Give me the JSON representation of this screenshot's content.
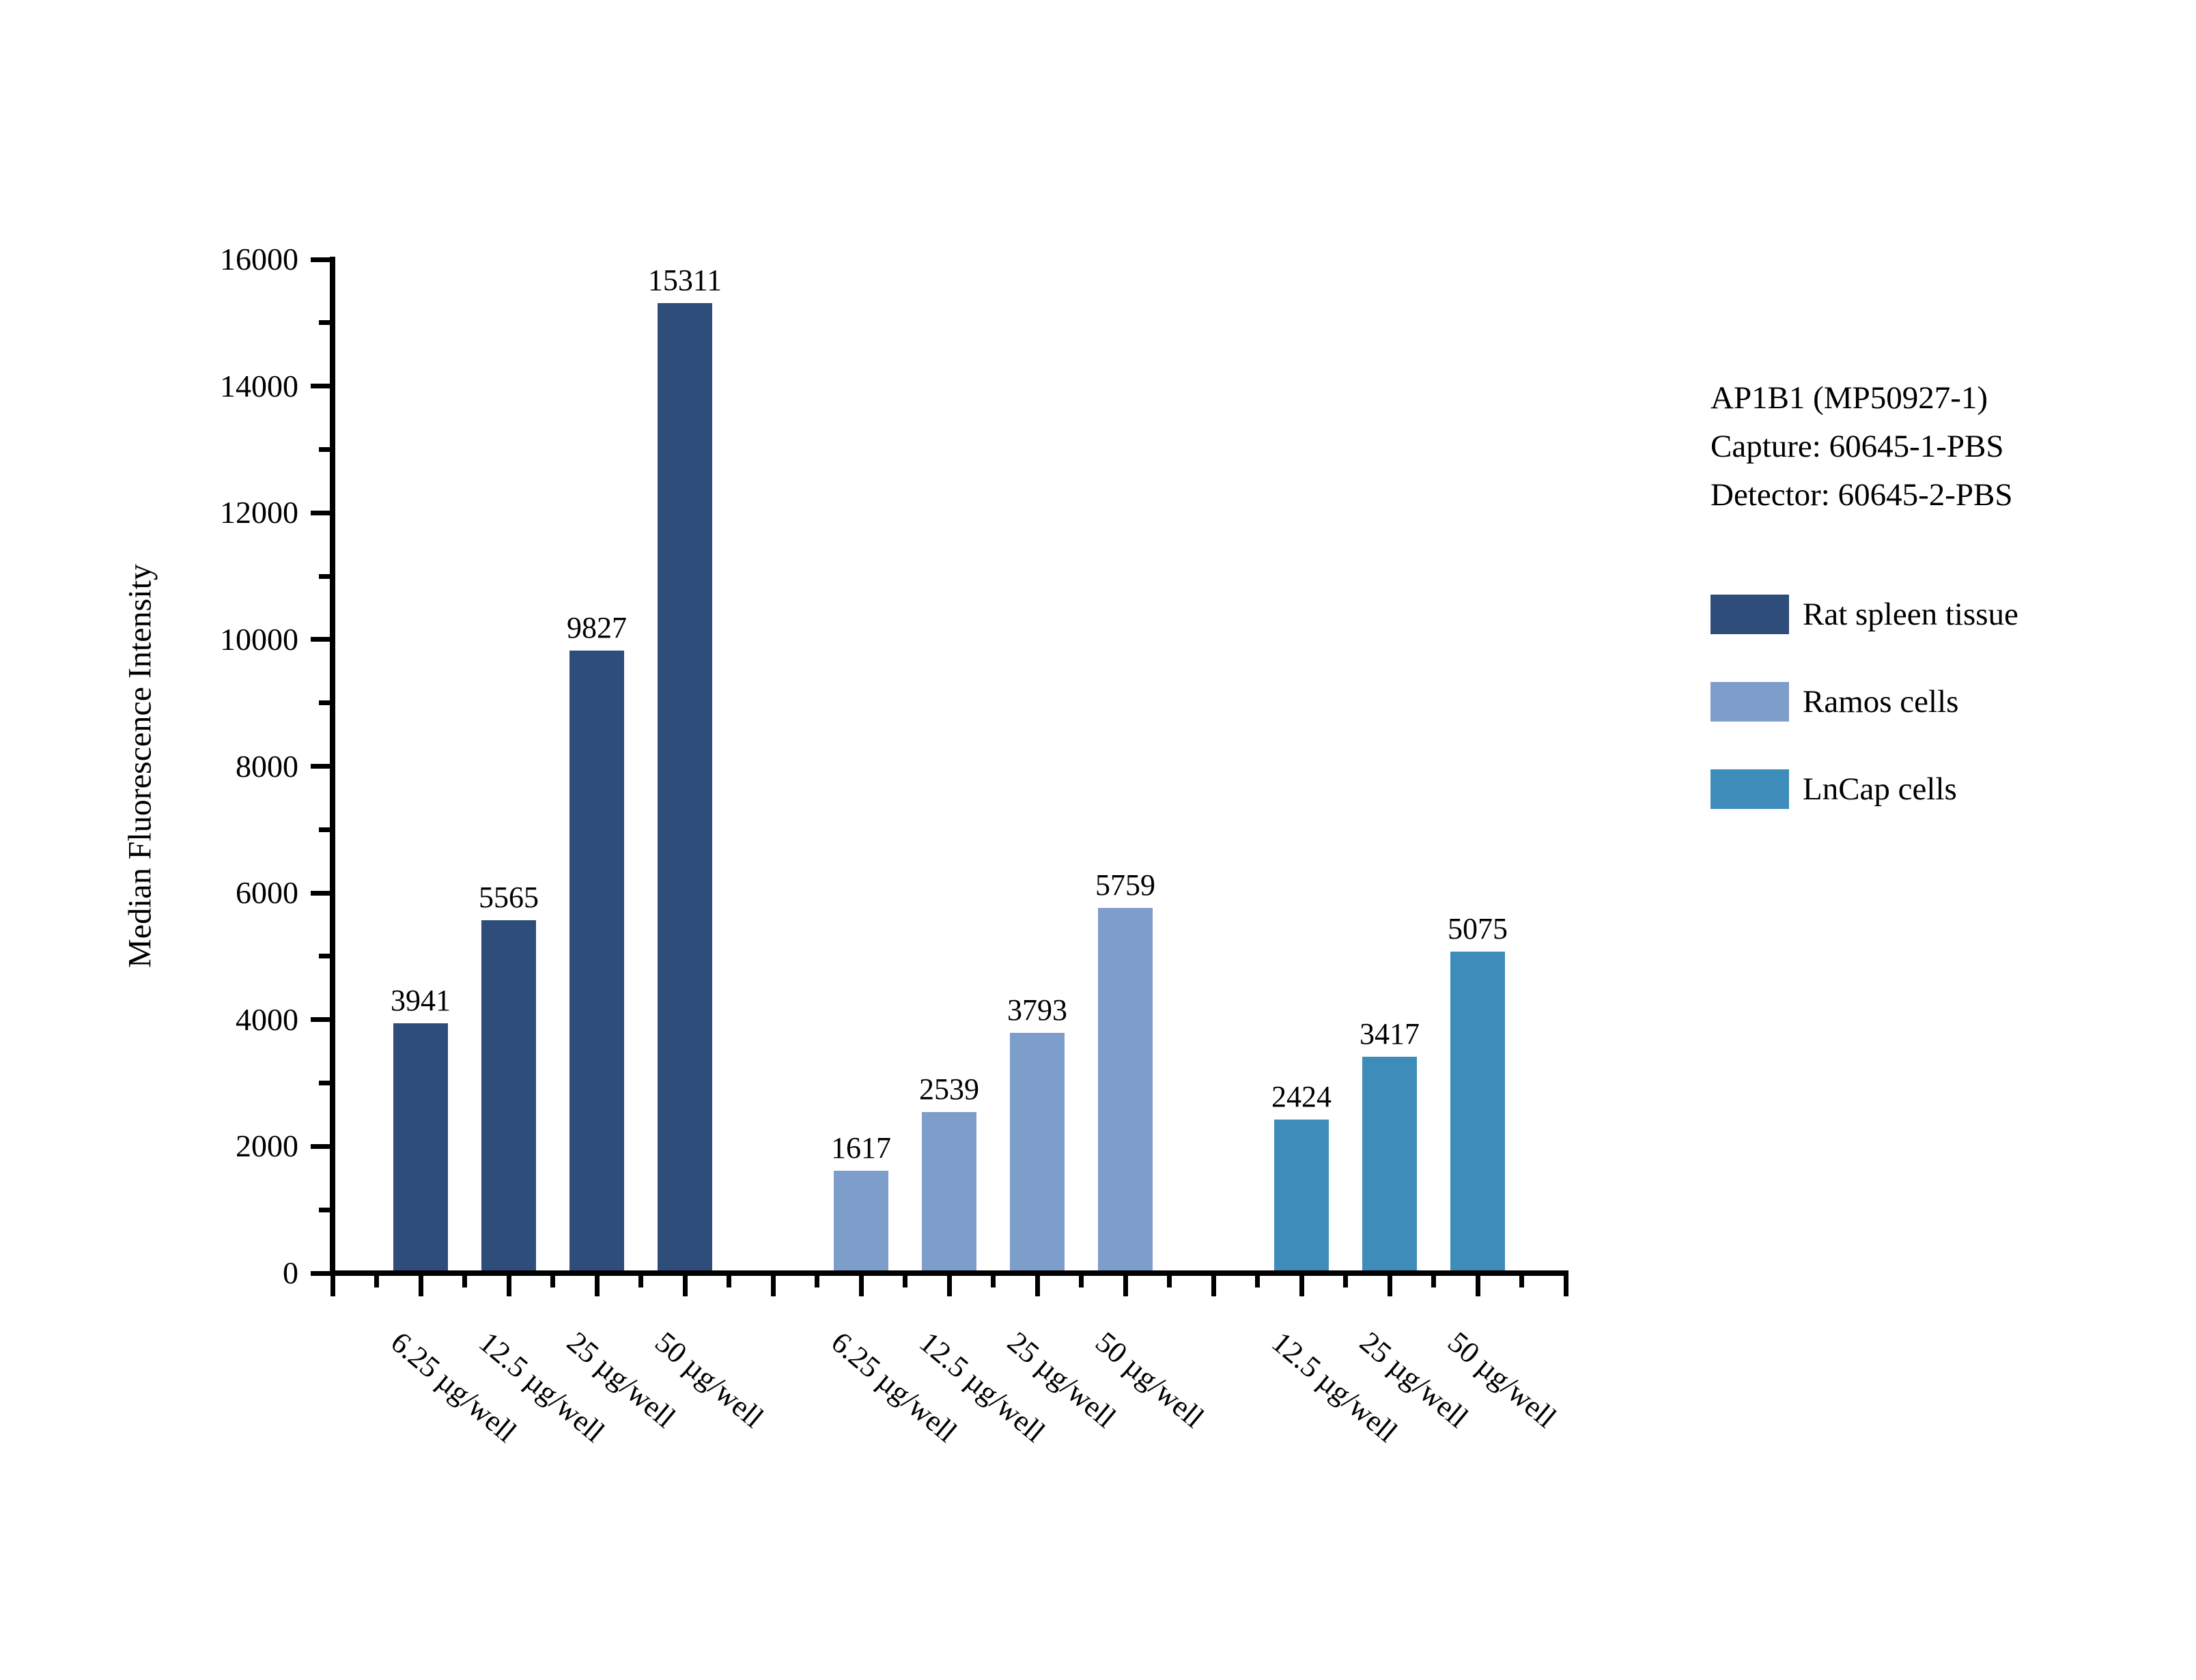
{
  "legend": {
    "annotation_lines": [
      "AP1B1 (MP50927-1)",
      "Capture: 60645-1-PBS",
      "Detector: 60645-2-PBS"
    ],
    "entries": [
      {
        "label": "Rat spleen tissue",
        "color": "#2F4D7B"
      },
      {
        "label": "Ramos cells",
        "color": "#7D9DCB"
      },
      {
        "label": "LnCap cells",
        "color": "#3E8CBA"
      }
    ]
  },
  "chart_data": {
    "type": "bar",
    "title": "",
    "xlabel": "",
    "ylabel": "Median Fluorescence Intensity",
    "ylim": [
      0,
      16000
    ],
    "yticks": [
      0,
      2000,
      4000,
      6000,
      8000,
      10000,
      12000,
      14000,
      16000
    ],
    "ytick_step": 2000,
    "yminor_step": 1000,
    "grid": false,
    "bar_value_labels": true,
    "legend_position": "right",
    "groups": [
      {
        "name": "Rat spleen tissue",
        "color": "#2F4D7B",
        "categories": [
          "6.25 µg/well",
          "12.5 µg/well",
          "25 µg/well",
          "50 µg/well"
        ],
        "values": [
          3941,
          5565,
          9827,
          15311
        ]
      },
      {
        "name": "Ramos cells",
        "color": "#7D9DCB",
        "categories": [
          "6.25 µg/well",
          "12.5 µg/well",
          "25 µg/well",
          "50 µg/well"
        ],
        "values": [
          1617,
          2539,
          3793,
          5759
        ]
      },
      {
        "name": "LnCap cells",
        "color": "#3E8CBA",
        "categories": [
          "12.5 µg/well",
          "25 µg/well",
          "50 µg/well"
        ],
        "values": [
          2424,
          3417,
          5075
        ]
      }
    ]
  }
}
